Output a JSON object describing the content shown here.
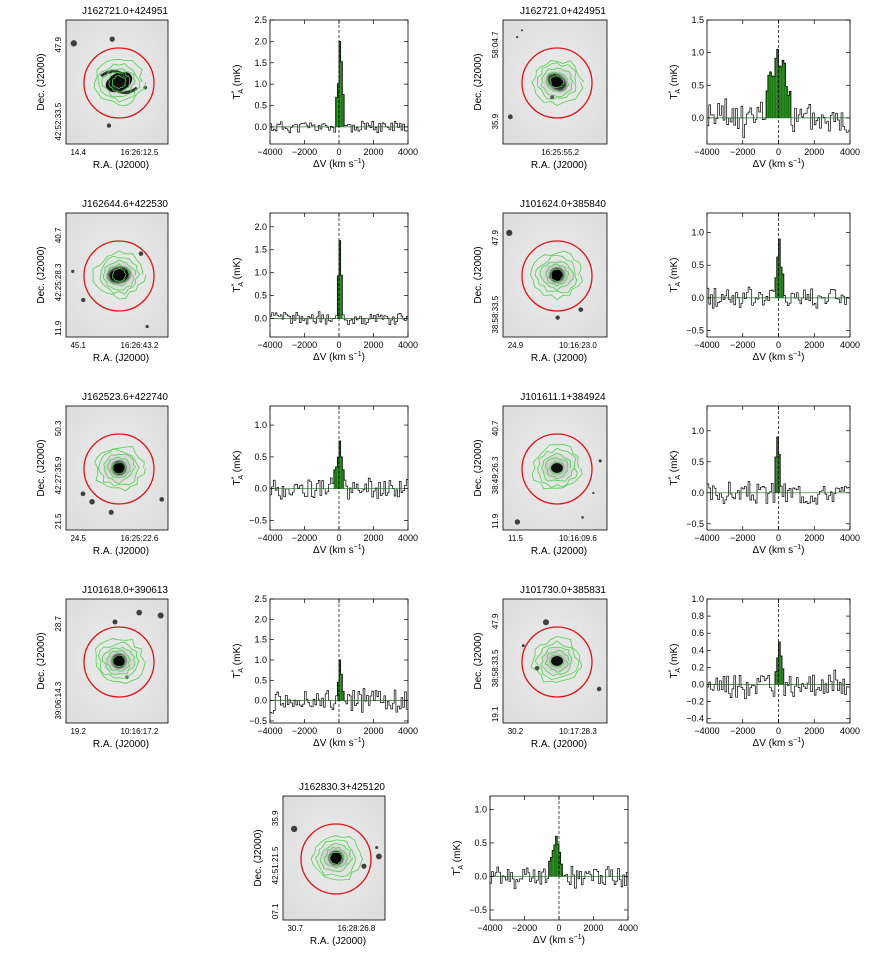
{
  "axis_labels": {
    "ra": "R.A. (J2000)",
    "dec": "Dec. (J2000)",
    "dv": "ΔV (km s",
    "dv_exp": "−1",
    "dv_close": ")",
    "ta": "T",
    "ta_star": "*",
    "ta_sub": "A",
    "ta_unit": "(mK)"
  },
  "velocity_ticks": [
    "−4000",
    "−2000",
    "0",
    "2000",
    "4000"
  ],
  "colors": {
    "line_fill": "#1c7a12",
    "contour": "#4cd14c",
    "beam_circle": "#e01414",
    "axis": "#000000"
  },
  "panels": [
    {
      "name": "J162721.0+424951",
      "image": {
        "dec_ticks": [
          "47.9",
          "42:52:33.5"
        ],
        "ra_ticks": [
          "14.4",
          "16:26:12.5"
        ],
        "morphology": "spiral"
      },
      "chart_data": {
        "type": "bar",
        "title": "J162721.0+424951",
        "xlabel": "ΔV (km s−1)",
        "ylabel": "T*A (mK)",
        "xlim": [
          -4000,
          4000
        ],
        "ylim": [
          -0.4,
          2.5
        ],
        "yticks": [
          "0.0",
          "0.5",
          "1.0",
          "1.5",
          "2.0",
          "2.5"
        ],
        "xticks": [
          "−4000",
          "−2000",
          "0",
          "2000",
          "4000"
        ],
        "line_window": [
          -150,
          250
        ],
        "peak": 2.0,
        "noise": 0.13,
        "seed": 11
      }
    },
    {
      "name": "J162721.0+424951",
      "image": {
        "dec_ticks": [
          "58:04.7",
          "35.9"
        ],
        "ra_ticks": [
          "16:25:55.2"
        ],
        "morphology": "tilted"
      },
      "chart_data": {
        "type": "bar",
        "title": "",
        "xlabel": "ΔV (km s−1)",
        "ylabel": "T*A (mK)",
        "xlim": [
          -4000,
          4000
        ],
        "ylim": [
          -0.4,
          1.5
        ],
        "yticks": [
          "0.0",
          "0.5",
          "1.0",
          "1.5"
        ],
        "xticks": [
          "−4000",
          "−2000",
          "0",
          "2000",
          "4000"
        ],
        "line_window": [
          -700,
          650
        ],
        "peak": 1.05,
        "noise": 0.25,
        "seed": 23
      }
    },
    {
      "name": "J162644.6+422530",
      "image": {
        "dec_ticks": [
          "40.7",
          "42:25:28.3",
          "11.9"
        ],
        "ra_ticks": [
          "45.1",
          "16:26:43.2"
        ],
        "morphology": "elliptical"
      },
      "chart_data": {
        "type": "bar",
        "title": "J162644.6+422530",
        "xlabel": "ΔV (km s−1)",
        "ylabel": "T*A (mK)",
        "xlim": [
          -4000,
          4000
        ],
        "ylim": [
          -0.4,
          2.3
        ],
        "yticks": [
          "0.0",
          "0.5",
          "1.0",
          "1.5",
          "2.0"
        ],
        "xticks": [
          "−4000",
          "−2000",
          "0",
          "2000",
          "4000"
        ],
        "line_window": [
          -100,
          200
        ],
        "peak": 1.7,
        "noise": 0.12,
        "seed": 37
      }
    },
    {
      "name": "J101624.0+385840",
      "image": {
        "dec_ticks": [
          "47.9",
          "38:58:33.5"
        ],
        "ra_ticks": [
          "24.9",
          "10:16:23.0"
        ],
        "morphology": "compact"
      },
      "chart_data": {
        "type": "bar",
        "title": "J101624.0+385840",
        "xlabel": "ΔV (km s−1)",
        "ylabel": "T*A (mK)",
        "xlim": [
          -4000,
          4000
        ],
        "ylim": [
          -0.6,
          1.3
        ],
        "yticks": [
          "−0.5",
          "0.0",
          "0.5",
          "1.0"
        ],
        "xticks": [
          "−4000",
          "−2000",
          "0",
          "2000",
          "4000"
        ],
        "line_window": [
          -150,
          300
        ],
        "peak": 0.9,
        "noise": 0.15,
        "seed": 41
      }
    },
    {
      "name": "J162523.6+422740",
      "image": {
        "dec_ticks": [
          "50.3",
          "42:27:35.9",
          "21.5"
        ],
        "ra_ticks": [
          "24.5",
          "16:25:22.6"
        ],
        "morphology": "compact"
      },
      "chart_data": {
        "type": "bar",
        "title": "J162523.6+422740",
        "xlabel": "ΔV (km s−1)",
        "ylabel": "T*A (mK)",
        "xlim": [
          -4000,
          4000
        ],
        "ylim": [
          -0.65,
          1.3
        ],
        "yticks": [
          "−0.5",
          "0.0",
          "0.5",
          "1.0"
        ],
        "xticks": [
          "−4000",
          "−2000",
          "0",
          "2000",
          "4000"
        ],
        "line_window": [
          -250,
          300
        ],
        "peak": 0.75,
        "noise": 0.15,
        "seed": 53
      }
    },
    {
      "name": "J101611.1+384924",
      "image": {
        "dec_ticks": [
          "40.7",
          "38:49:26.3",
          "11.9"
        ],
        "ra_ticks": [
          "11.5",
          "10:16:09.6"
        ],
        "morphology": "faint"
      },
      "chart_data": {
        "type": "bar",
        "title": "J101611.1+384924",
        "xlabel": "ΔV (km s−1)",
        "ylabel": "T*A (mK)",
        "xlim": [
          -4000,
          4000
        ],
        "ylim": [
          -0.6,
          1.4
        ],
        "yticks": [
          "−0.5",
          "0.0",
          "0.5",
          "1.0"
        ],
        "xticks": [
          "−4000",
          "−2000",
          "0",
          "2000",
          "4000"
        ],
        "line_window": [
          -200,
          100
        ],
        "peak": 0.9,
        "noise": 0.16,
        "seed": 67
      }
    },
    {
      "name": "J101618.0+390613",
      "image": {
        "dec_ticks": [
          "28.7",
          "39:06:14.3"
        ],
        "ra_ticks": [
          "19.2",
          "10:16:17.2"
        ],
        "morphology": "compact"
      },
      "chart_data": {
        "type": "bar",
        "title": "J101618.0+390613",
        "xlabel": "ΔV (km s−1)",
        "ylabel": "T*A (mK)",
        "xlim": [
          -4000,
          4000
        ],
        "ylim": [
          -0.55,
          2.5
        ],
        "yticks": [
          "−0.5",
          "0.0",
          "0.5",
          "1.0",
          "1.5",
          "2.0",
          "2.5"
        ],
        "xticks": [
          "−4000",
          "−2000",
          "0",
          "2000",
          "4000"
        ],
        "line_window": [
          -100,
          250
        ],
        "peak": 1.0,
        "noise": 0.25,
        "seed": 71
      }
    },
    {
      "name": "J101730.0+385831",
      "image": {
        "dec_ticks": [
          "47.9",
          "38:58:33.5",
          "19.1"
        ],
        "ra_ticks": [
          "30.2",
          "10:17:28.3"
        ],
        "morphology": "faint"
      },
      "chart_data": {
        "type": "bar",
        "title": "J101730.0+385831",
        "xlabel": "ΔV (km s−1)",
        "ylabel": "T*A (mK)",
        "xlim": [
          -4000,
          4000
        ],
        "ylim": [
          -0.45,
          1.0
        ],
        "yticks": [
          "−0.4",
          "−0.2",
          "0.0",
          "0.2",
          "0.4",
          "0.6",
          "0.8",
          "1.0"
        ],
        "xticks": [
          "−4000",
          "−2000",
          "0",
          "2000",
          "4000"
        ],
        "line_window": [
          -150,
          300
        ],
        "peak": 0.5,
        "noise": 0.14,
        "seed": 83
      }
    },
    {
      "name": "J162830.3+425120",
      "image": {
        "dec_ticks": [
          "35.9",
          "42:51:21.5",
          "07.1"
        ],
        "ra_ticks": [
          "30.7",
          "16:28:26.8"
        ],
        "morphology": "compact"
      },
      "chart_data": {
        "type": "bar",
        "title": "J162830.3+425120",
        "xlabel": "ΔV (km s−1)",
        "ylabel": "T*A (mK)",
        "xlim": [
          -4000,
          4000
        ],
        "ylim": [
          -0.65,
          1.2
        ],
        "yticks": [
          "−0.5",
          "0.0",
          "0.5",
          "1.0"
        ],
        "xticks": [
          "−4000",
          "−2000",
          "0",
          "2000",
          "4000"
        ],
        "line_window": [
          -550,
          200
        ],
        "peak": 0.6,
        "noise": 0.15,
        "seed": 97
      }
    }
  ]
}
